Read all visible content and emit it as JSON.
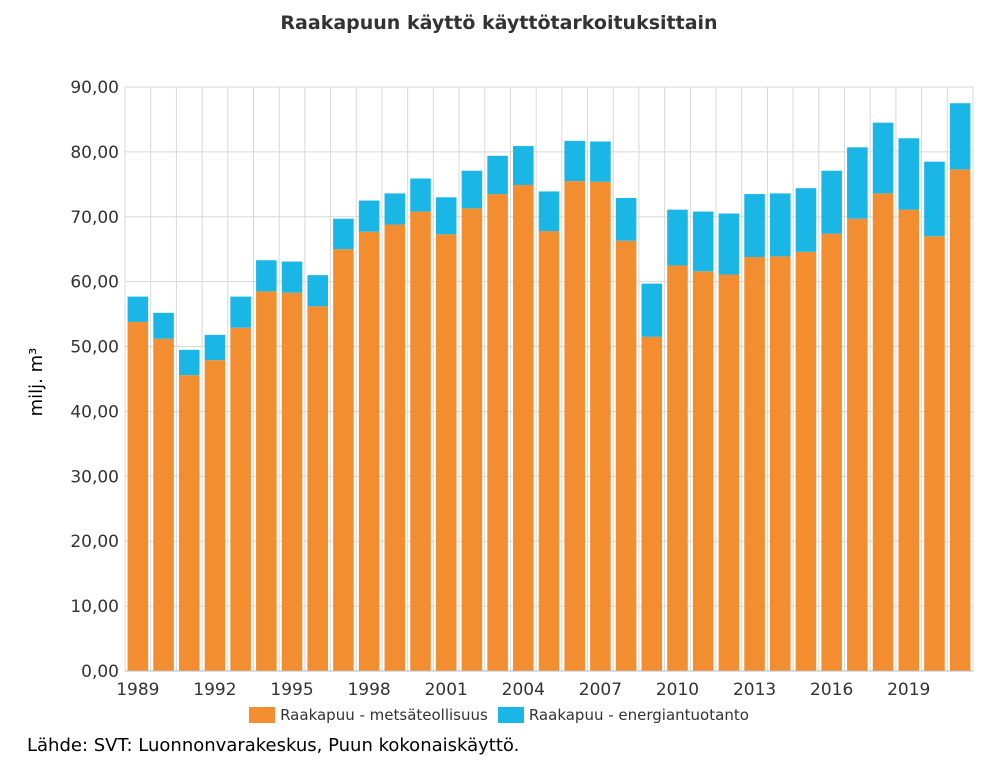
{
  "chart_data": {
    "type": "bar",
    "stacked": true,
    "title": "Raakapuun käyttö käyttötarkoituksittain",
    "xlabel": "",
    "ylabel": "milj. m³",
    "ylim": [
      0,
      90
    ],
    "yticks": [
      "0,00",
      "10,00",
      "20,00",
      "30,00",
      "40,00",
      "50,00",
      "60,00",
      "70,00",
      "80,00",
      "90,00"
    ],
    "categories": [
      "1989",
      "1990",
      "1991",
      "1992",
      "1993",
      "1994",
      "1995",
      "1996",
      "1997",
      "1998",
      "1999",
      "2000",
      "2001",
      "2002",
      "2003",
      "2004",
      "2005",
      "2006",
      "2007",
      "2008",
      "2009",
      "2010",
      "2011",
      "2012",
      "2013",
      "2014",
      "2015",
      "2016",
      "2017",
      "2018",
      "2019",
      "2020",
      "2021"
    ],
    "xtick_labels": [
      "1989",
      "1992",
      "1995",
      "1998",
      "2001",
      "2004",
      "2007",
      "2010",
      "2013",
      "2016",
      "2019"
    ],
    "series": [
      {
        "name": "Raakapuu - metsäteollisuus",
        "color": "#f28e2f",
        "values": [
          53.8,
          51.2,
          45.6,
          47.9,
          52.9,
          58.5,
          58.3,
          56.2,
          65.0,
          67.7,
          68.8,
          70.8,
          67.3,
          71.3,
          73.5,
          74.9,
          67.8,
          75.5,
          75.4,
          66.3,
          51.5,
          62.5,
          61.6,
          61.1,
          63.8,
          63.9,
          64.6,
          67.4,
          69.7,
          73.6,
          71.1,
          67.0,
          77.3
        ]
      },
      {
        "name": "Raakapuu - energiantuotanto",
        "color": "#1ab6e6",
        "values": [
          3.9,
          4.0,
          3.9,
          3.9,
          4.8,
          4.8,
          4.8,
          4.8,
          4.7,
          4.8,
          4.8,
          5.1,
          5.7,
          5.8,
          5.9,
          6.0,
          6.1,
          6.2,
          6.2,
          6.6,
          8.2,
          8.6,
          9.2,
          9.4,
          9.7,
          9.7,
          9.8,
          9.7,
          11.0,
          10.9,
          11.0,
          11.5,
          10.2
        ]
      }
    ]
  },
  "source": "Lähde: SVT: Luonnonvarakeskus, Puun kokonaiskäyttö."
}
